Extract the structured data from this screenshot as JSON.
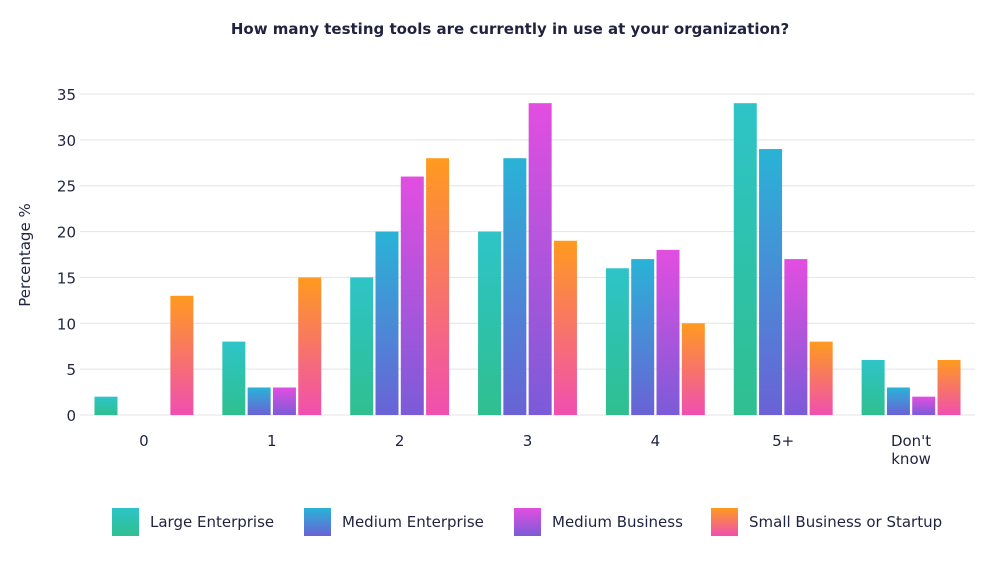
{
  "chart_data": {
    "type": "bar",
    "title": "How many testing tools are currently in use at your organization?",
    "xlabel": "",
    "ylabel": "Percentage %",
    "ylim": [
      0,
      35
    ],
    "yticks": [
      0,
      5,
      10,
      15,
      20,
      25,
      30,
      35
    ],
    "grid": true,
    "legend_position": "bottom",
    "categories": [
      "0",
      "1",
      "2",
      "3",
      "4",
      "5+",
      "Don't\nknow"
    ],
    "series": [
      {
        "name": "Large Enterprise",
        "gradient": [
          "#2ec4c8",
          "#2fbf8f"
        ],
        "values": [
          2,
          8,
          15,
          20,
          16,
          34,
          6
        ]
      },
      {
        "name": "Medium Enterprise",
        "gradient": [
          "#29b3d6",
          "#6a62d6"
        ],
        "values": [
          0,
          3,
          20,
          28,
          17,
          29,
          3
        ]
      },
      {
        "name": "Medium Business",
        "gradient": [
          "#e24ee0",
          "#7b5bd8"
        ],
        "values": [
          0,
          3,
          26,
          34,
          18,
          17,
          2
        ]
      },
      {
        "name": "Small Business or Startup",
        "gradient": [
          "#ff9a1f",
          "#f04fb0"
        ],
        "values": [
          13,
          15,
          28,
          19,
          10,
          8,
          6
        ]
      }
    ]
  }
}
